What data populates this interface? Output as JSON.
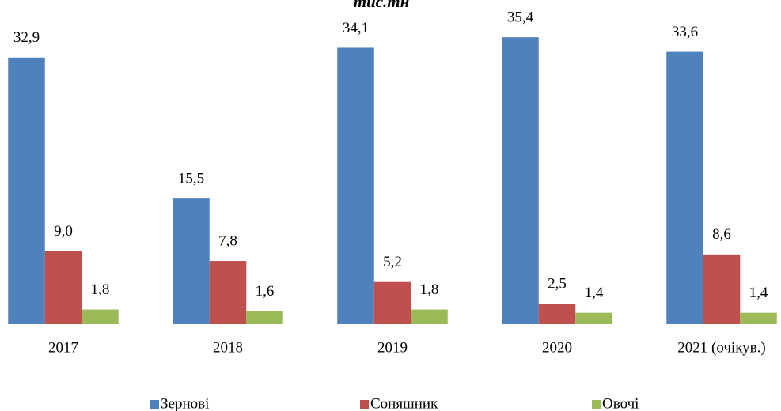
{
  "chart_data": {
    "type": "bar",
    "title": "тис.тн",
    "categories": [
      "2017",
      "2018",
      "2019",
      "2020",
      "2021 (очікув.)"
    ],
    "series": [
      {
        "name": "Зернові",
        "color": "#4f81bd",
        "values": [
          32.9,
          15.5,
          34.1,
          35.4,
          33.6
        ],
        "value_labels": [
          "32,9",
          "15,5",
          "34,1",
          "35,4",
          "33,6"
        ]
      },
      {
        "name": "Соняшник",
        "color": "#c0504d",
        "values": [
          9.0,
          7.8,
          5.2,
          2.5,
          8.6
        ],
        "value_labels": [
          "9,0",
          "7,8",
          "5,2",
          "2,5",
          "8,6"
        ]
      },
      {
        "name": "Овочі",
        "color": "#9bbb59",
        "values": [
          1.8,
          1.6,
          1.8,
          1.4,
          1.4
        ],
        "value_labels": [
          "1,8",
          "1,6",
          "1,8",
          "1,4",
          "1,4"
        ]
      }
    ],
    "ylim": [
      0,
      40
    ],
    "legend": "bottom"
  }
}
